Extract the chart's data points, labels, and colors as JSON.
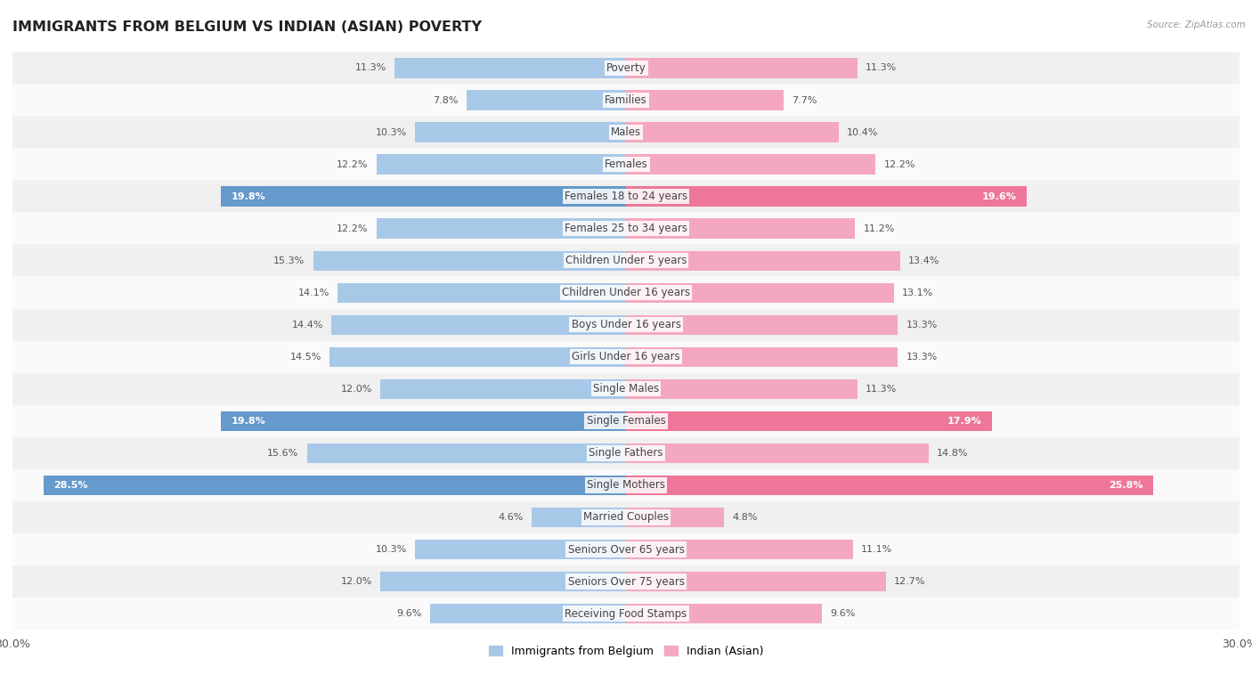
{
  "title": "IMMIGRANTS FROM BELGIUM VS INDIAN (ASIAN) POVERTY",
  "source": "Source: ZipAtlas.com",
  "categories": [
    "Poverty",
    "Families",
    "Males",
    "Females",
    "Females 18 to 24 years",
    "Females 25 to 34 years",
    "Children Under 5 years",
    "Children Under 16 years",
    "Boys Under 16 years",
    "Girls Under 16 years",
    "Single Males",
    "Single Females",
    "Single Fathers",
    "Single Mothers",
    "Married Couples",
    "Seniors Over 65 years",
    "Seniors Over 75 years",
    "Receiving Food Stamps"
  ],
  "belgium_values": [
    11.3,
    7.8,
    10.3,
    12.2,
    19.8,
    12.2,
    15.3,
    14.1,
    14.4,
    14.5,
    12.0,
    19.8,
    15.6,
    28.5,
    4.6,
    10.3,
    12.0,
    9.6
  ],
  "indian_values": [
    11.3,
    7.7,
    10.4,
    12.2,
    19.6,
    11.2,
    13.4,
    13.1,
    13.3,
    13.3,
    11.3,
    17.9,
    14.8,
    25.8,
    4.8,
    11.1,
    12.7,
    9.6
  ],
  "belgium_color": "#a8c8e8",
  "indian_color": "#f4a8c0",
  "highlight_belgium_color": "#6699cc",
  "highlight_indian_color": "#ee7799",
  "highlight_rows": [
    4,
    11,
    13
  ],
  "bar_height": 0.62,
  "xlim": 30.0,
  "legend_belgium": "Immigrants from Belgium",
  "legend_indian": "Indian (Asian)",
  "row_bg_even": "#f0f0f0",
  "row_bg_odd": "#fafafa",
  "label_fontsize": 8.5,
  "value_fontsize": 8.0,
  "title_fontsize": 11.5
}
